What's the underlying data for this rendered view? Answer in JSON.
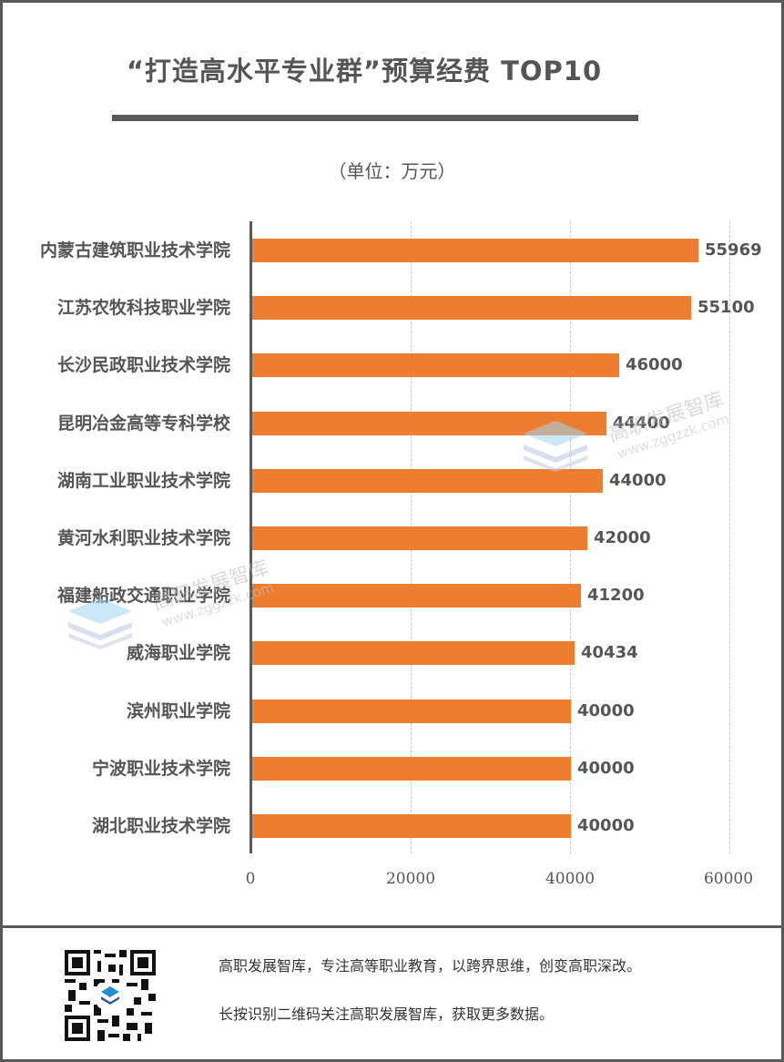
{
  "header": {
    "title": "“打造高水平专业群”预算经费 TOP10",
    "unit": "（单位：万元）"
  },
  "colors": {
    "bar": "#ed7d31",
    "text": "#555555",
    "frame": "#595959",
    "grid": "#c8c8c8"
  },
  "chart_data": {
    "type": "bar",
    "orientation": "horizontal",
    "title": "“打造高水平专业群”预算经费 TOP10",
    "subtitle": "（单位：万元）",
    "xlabel": "",
    "ylabel": "",
    "xlim": [
      0,
      60000
    ],
    "xticks": [
      "0",
      "20000",
      "40000",
      "60000"
    ],
    "grid": "vertical dashed",
    "legend": "none",
    "categories": [
      "内蒙古建筑职业技术学院",
      "江苏农牧科技职业学院",
      "长沙民政职业技术学院",
      "昆明冶金高等专科学校",
      "湖南工业职业技术学院",
      "黄河水利职业技术学院",
      "福建船政交通职业学院",
      "威海职业学院",
      "滨州职业学院",
      "宁波职业技术学院",
      "湖北职业技术学院"
    ],
    "values": [
      55969,
      55100,
      46000,
      44400,
      44000,
      42000,
      41200,
      40434,
      40000,
      40000,
      40000
    ],
    "value_labels": [
      "55969",
      "55100",
      "46000",
      "44400",
      "44000",
      "42000",
      "41200",
      "40434",
      "40000",
      "40000",
      "40000"
    ]
  },
  "watermark": {
    "name": "高职发展智库",
    "url": "www.zggzzk.com"
  },
  "footer": {
    "line1": "高职发展智库，专注高等职业教育，以跨界思维，创变高职深改。",
    "line2": "长按识别二维码关注高职发展智库，获取更多数据。"
  }
}
